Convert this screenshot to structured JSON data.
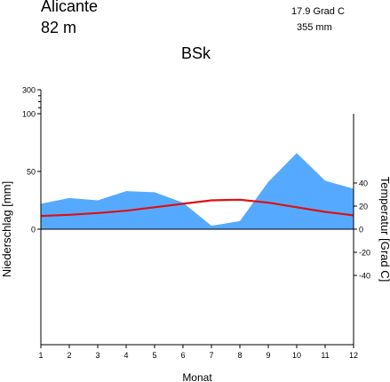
{
  "header": {
    "station": "Alicante",
    "elevation": "82  m",
    "mean_temperature": "17.9 Grad C",
    "annual_precipitation": "355 mm",
    "climate_class": "BSk"
  },
  "chart_data": {
    "type": "area",
    "title": "",
    "xlabel": "Monat",
    "ylabel_left": "Niederschlag [mm]",
    "ylabel_right": "Temperatur [Grad C]",
    "x": [
      1,
      2,
      3,
      4,
      5,
      6,
      7,
      8,
      9,
      10,
      11,
      12
    ],
    "x_ticks": [
      "1",
      "2",
      "3",
      "4",
      "5",
      "6",
      "7",
      "8",
      "9",
      "10",
      "11",
      "12"
    ],
    "precip_ticks": [
      "0",
      "50",
      "100",
      "300"
    ],
    "temp_ticks": [
      "-40",
      "-20",
      "0",
      "20",
      "40"
    ],
    "precip_range": [
      0,
      100
    ],
    "temp_range": [
      -50,
      50
    ],
    "series": [
      {
        "type": "area",
        "axis": "left",
        "color": "#55aaff",
        "values": [
          22,
          27,
          25,
          33,
          32,
          23,
          3,
          7,
          41,
          66,
          42,
          35
        ]
      },
      {
        "type": "line",
        "axis": "right",
        "color": "#dd1111",
        "values": [
          11.5,
          12.5,
          14.0,
          16.0,
          19.0,
          22.0,
          25.0,
          25.5,
          23.0,
          19.0,
          15.0,
          12.0
        ]
      }
    ]
  }
}
